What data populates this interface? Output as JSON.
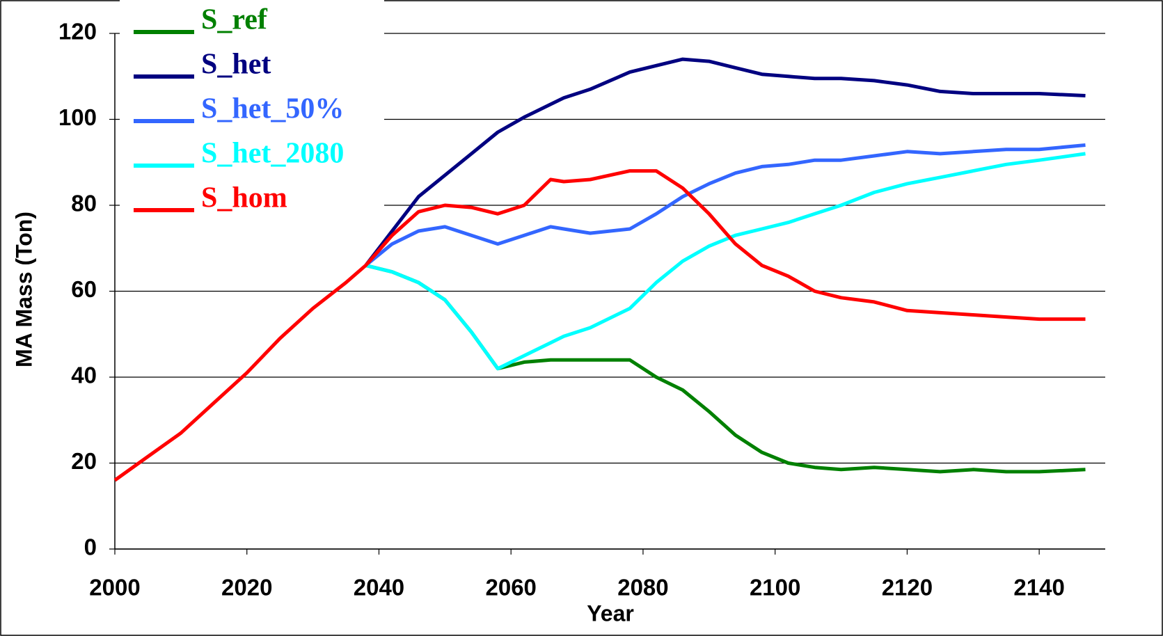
{
  "chart_data": {
    "type": "line",
    "x_label": "Year",
    "y_label": "MA Mass (Ton)",
    "xlim": [
      2000,
      2150
    ],
    "xticks": [
      2000,
      2020,
      2040,
      2060,
      2080,
      2100,
      2120,
      2140
    ],
    "ylim": [
      0,
      120
    ],
    "yticks": [
      0,
      20,
      40,
      60,
      80,
      100,
      120
    ],
    "grid": true,
    "legend": "upper left",
    "x": [
      2000,
      2005,
      2010,
      2015,
      2020,
      2025,
      2030,
      2035,
      2038,
      2042,
      2046,
      2050,
      2054,
      2058,
      2062,
      2066,
      2068,
      2072,
      2078,
      2082,
      2086,
      2090,
      2094,
      2098,
      2102,
      2106,
      2110,
      2115,
      2120,
      2125,
      2130,
      2135,
      2140,
      2147
    ],
    "series": [
      {
        "name": "S_ref",
        "color": "#008000",
        "values": [
          null,
          null,
          null,
          null,
          null,
          null,
          null,
          null,
          66,
          64.5,
          62,
          58,
          50.5,
          42,
          43.5,
          44,
          44,
          44,
          44,
          40,
          37,
          32,
          26.5,
          22.5,
          20,
          19,
          18.5,
          19,
          18.5,
          18,
          18.5,
          18,
          18,
          18.5
        ]
      },
      {
        "name": "S_het",
        "color": "#000080",
        "values": [
          null,
          null,
          null,
          null,
          null,
          null,
          null,
          null,
          66,
          74,
          82,
          87,
          92,
          97,
          100.5,
          103.5,
          105,
          107,
          111,
          112.5,
          114,
          113.5,
          112,
          110.5,
          110,
          109.5,
          109.5,
          109,
          108,
          106.5,
          106,
          106,
          106,
          105.5
        ]
      },
      {
        "name": "S_het_50%",
        "color": "#3366ff",
        "values": [
          null,
          null,
          null,
          null,
          null,
          null,
          null,
          null,
          66,
          71,
          74,
          75,
          73,
          71,
          73,
          75,
          74.5,
          73.5,
          74.5,
          78,
          82,
          85,
          87.5,
          89,
          89.5,
          90.5,
          90.5,
          91.5,
          92.5,
          92,
          92.5,
          93,
          93,
          94
        ]
      },
      {
        "name": "S_het_2080",
        "color": "#00ffff",
        "values": [
          null,
          null,
          null,
          null,
          null,
          null,
          null,
          null,
          66,
          64.5,
          62,
          58,
          50.5,
          42,
          45,
          48,
          49.5,
          51.5,
          56,
          62,
          67,
          70.5,
          73,
          74.5,
          76,
          78,
          80,
          83,
          85,
          86.5,
          88,
          89.5,
          90.5,
          92
        ]
      },
      {
        "name": "S_hom",
        "color": "#ff0000",
        "values": [
          16,
          21.5,
          27,
          34,
          41,
          49,
          56,
          62,
          66,
          73,
          78.5,
          80,
          79.5,
          78,
          80,
          86,
          85.5,
          86,
          88,
          88,
          84,
          78,
          71,
          66,
          63.5,
          60,
          58.5,
          57.5,
          55.5,
          55,
          54.5,
          54,
          53.5,
          53.5
        ]
      }
    ]
  }
}
